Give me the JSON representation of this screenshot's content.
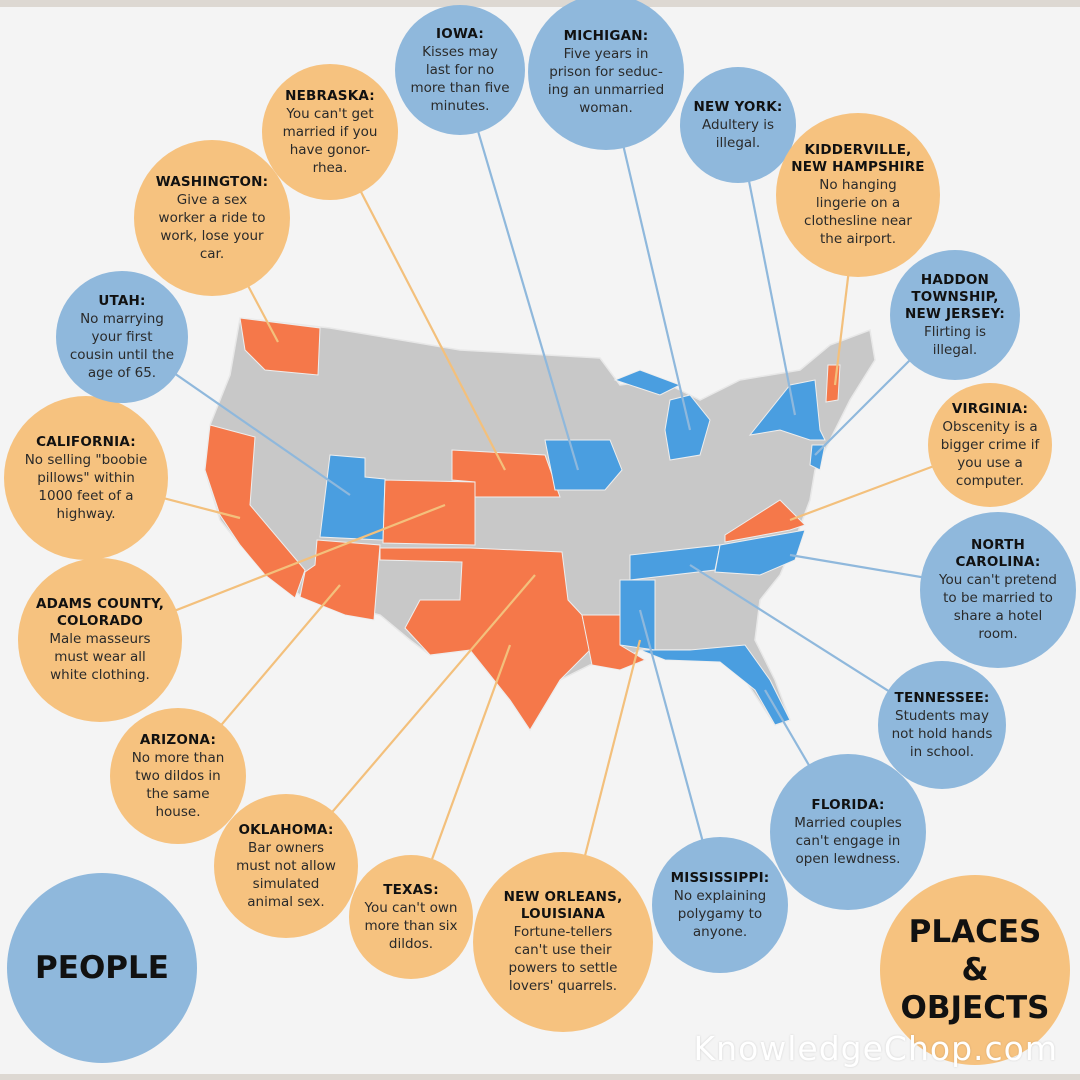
{
  "colors": {
    "orange_bubble": "#f6c27f",
    "blue_bubble": "#8fb8dc",
    "state_orange": "#f5784a",
    "state_blue": "#4a9ee0",
    "state_gray": "#c8c8c8"
  },
  "laws": [
    {
      "title": "IOWA:",
      "text": "Kisses may\nlast for no\nmore than five\nminutes.",
      "category": "people"
    },
    {
      "title": "MICHIGAN:",
      "text": "Five years in\nprison for seduc-\ning an unmarried\nwoman.",
      "category": "people"
    },
    {
      "title": "NEW YORK:",
      "text": "Adultery is\nillegal.",
      "category": "people"
    },
    {
      "title": "KIDDERVILLE,\nNEW HAMPSHIRE",
      "text": "No hanging\nlingerie on a\nclothesline near\nthe airport.",
      "category": "places"
    },
    {
      "title": "HADDON\nTOWNSHIP,\nNEW JERSEY:",
      "text": "Flirting is\nillegal.",
      "category": "people"
    },
    {
      "title": "VIRGINIA:",
      "text": "Obscenity is a\nbigger crime if\nyou use a\ncomputer.",
      "category": "places"
    },
    {
      "title": "NORTH\nCAROLINA:",
      "text": "You can't pretend\nto be married to\nshare a hotel\nroom.",
      "category": "people"
    },
    {
      "title": "TENNESSEE:",
      "text": "Students may\nnot hold hands\nin school.",
      "category": "people"
    },
    {
      "title": "FLORIDA:",
      "text": "Married couples\ncan't engage in\nopen lewdness.",
      "category": "people"
    },
    {
      "title": "MISSISSIPPI:",
      "text": "No explaining\npolygamy to\nanyone.",
      "category": "people"
    },
    {
      "title": "NEW ORLEANS,\nLOUISIANA",
      "text": "Fortune-tellers\ncan't use their\npowers to settle\nlovers' quarrels.",
      "category": "places"
    },
    {
      "title": "TEXAS:",
      "text": "You can't own\nmore than six\ndildos.",
      "category": "places"
    },
    {
      "title": "OKLAHOMA:",
      "text": "Bar owners\nmust not allow\nsimulated\nanimal sex.",
      "category": "places"
    },
    {
      "title": "ARIZONA:",
      "text": "No more than\ntwo dildos in\nthe same\nhouse.",
      "category": "places"
    },
    {
      "title": "ADAMS COUNTY,\nCOLORADO",
      "text": "Male masseurs\nmust wear all\nwhite clothing.",
      "category": "places"
    },
    {
      "title": "CALIFORNIA:",
      "text": "No selling \"boobie\npillows\" within\n1000 feet of a\nhighway.",
      "category": "places"
    },
    {
      "title": "UTAH:",
      "text": "No marrying\nyour first\ncousin until the\nage of 65.",
      "category": "people"
    },
    {
      "title": "WASHINGTON:",
      "text": "Give a sex\nworker a ride to\nwork, lose your\ncar.",
      "category": "places"
    },
    {
      "title": "NEBRASKA:",
      "text": "You can't get\nmarried if you\nhave gonor-\nrhea.",
      "category": "places"
    }
  ],
  "legend": {
    "people": "PEOPLE",
    "places": "PLACES &\nOBJECTS"
  },
  "watermark": "KnowledgeChop.com"
}
